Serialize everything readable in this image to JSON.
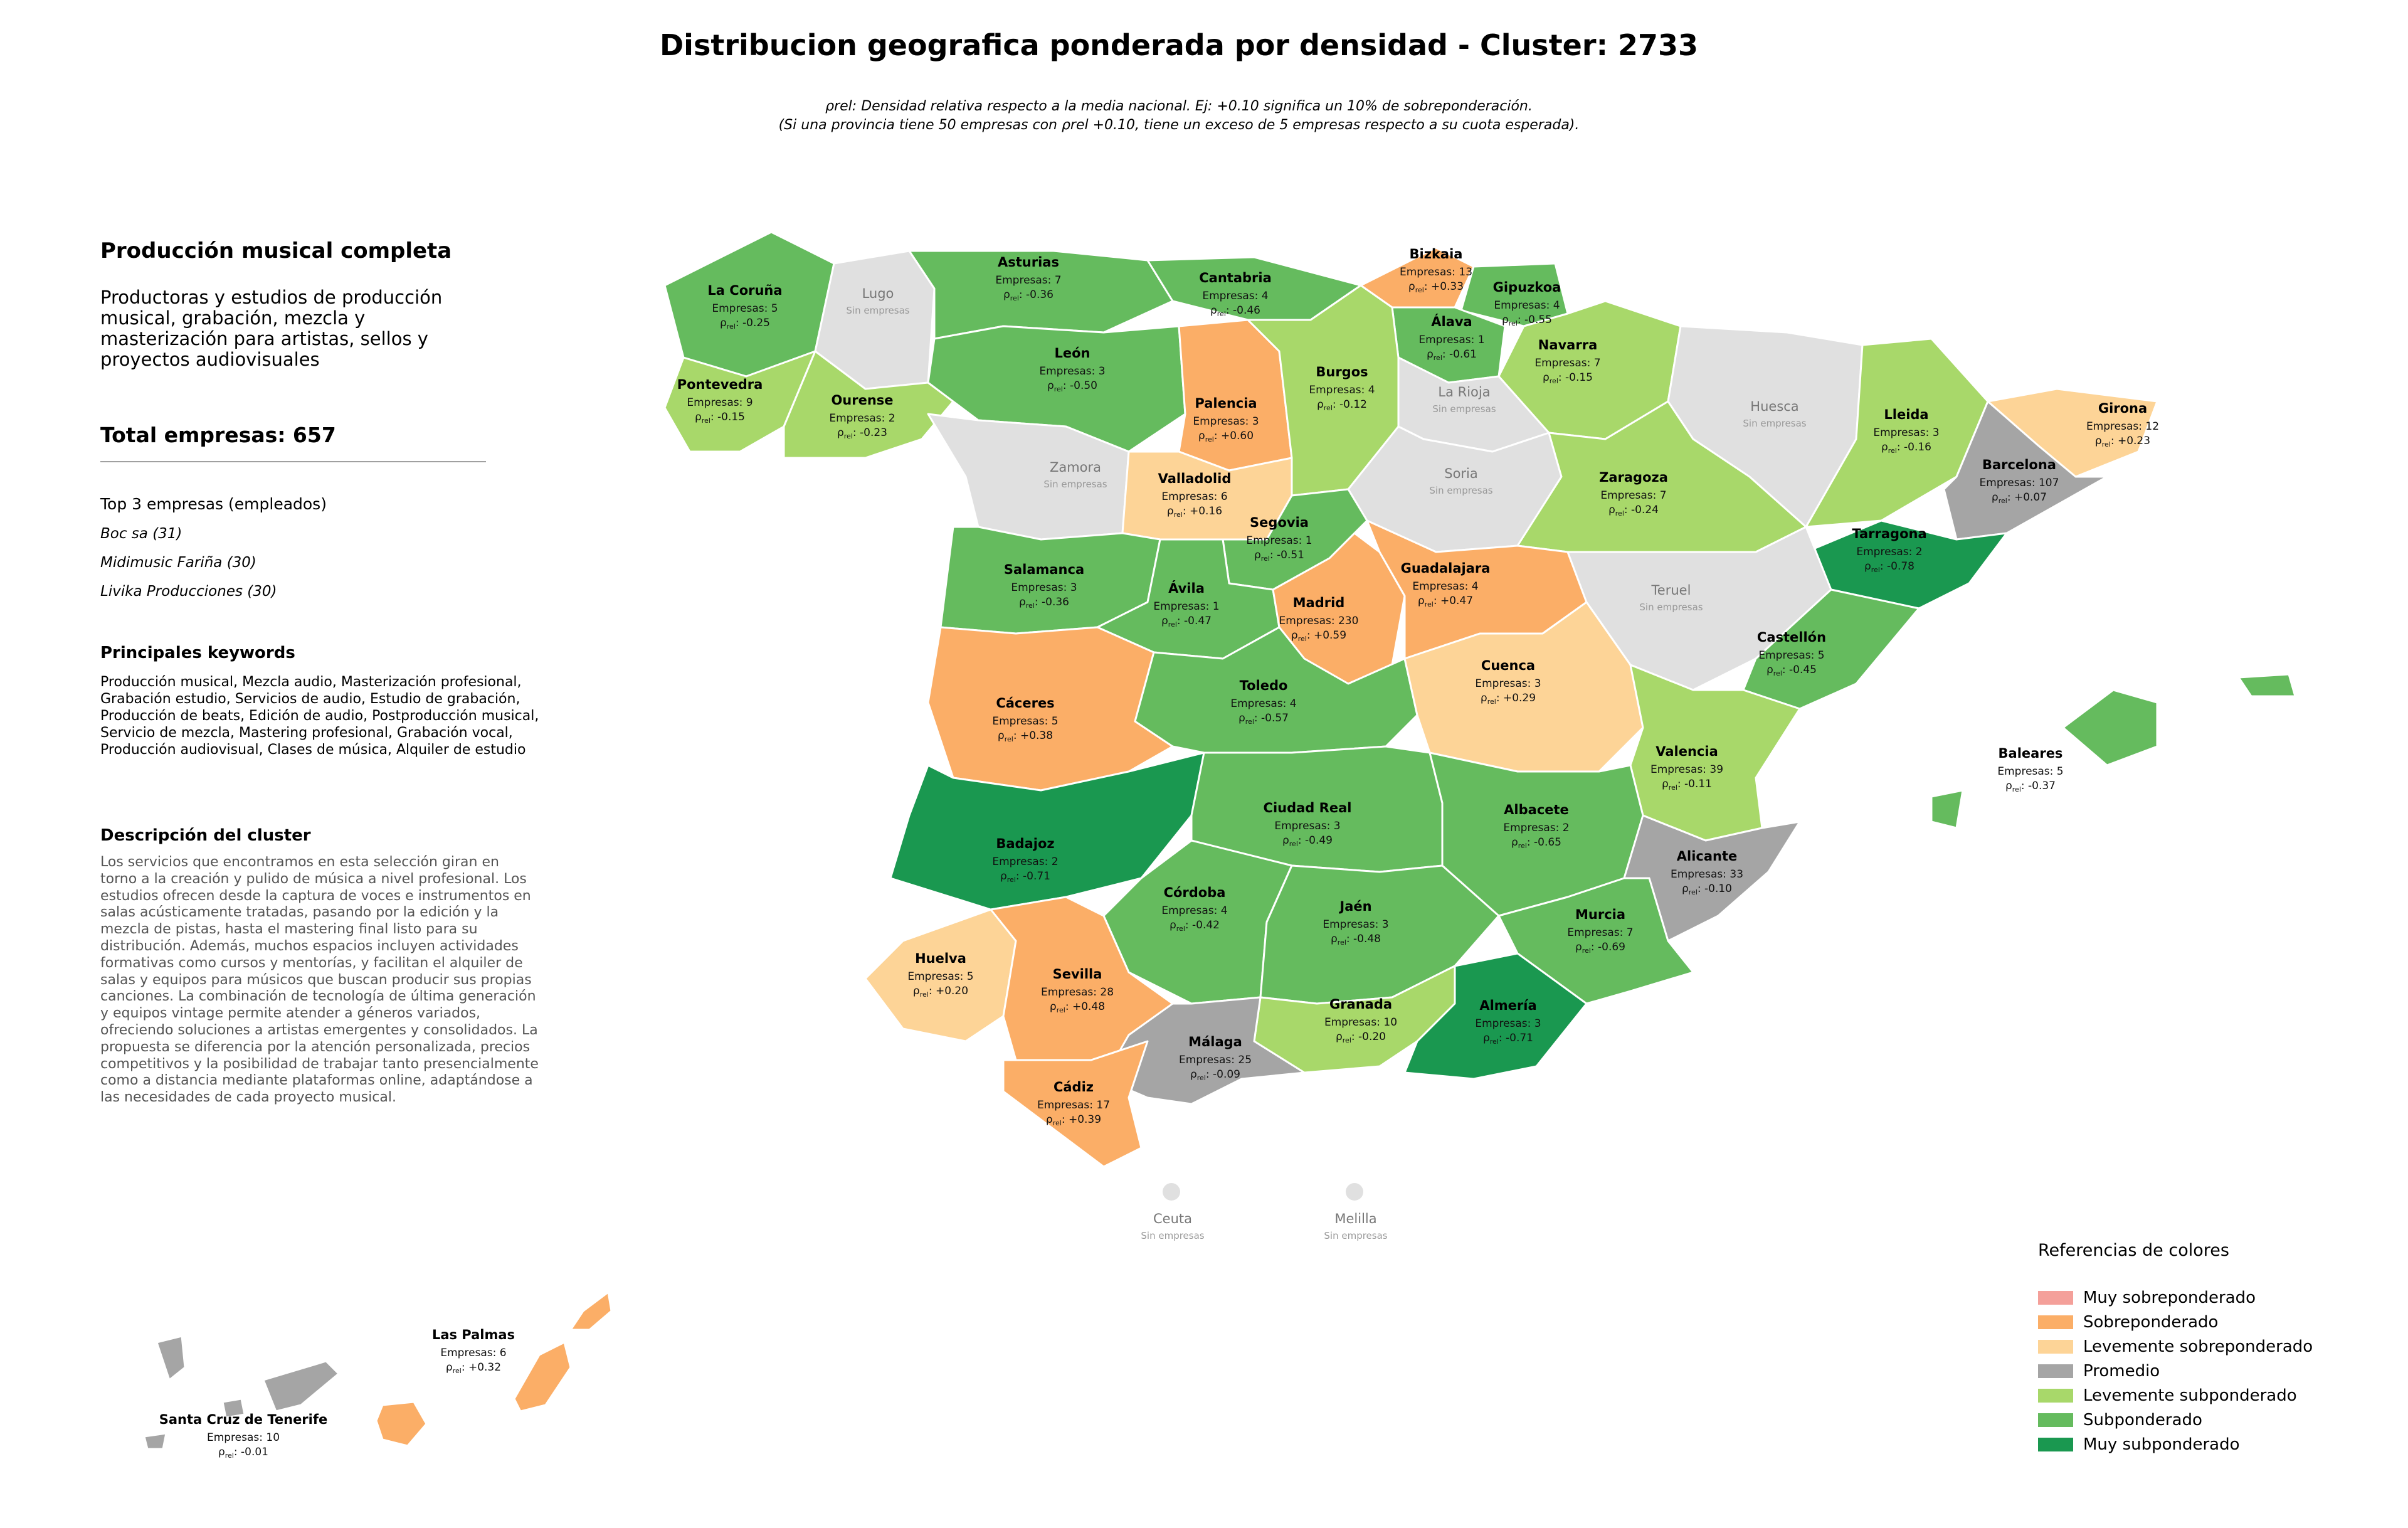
{
  "title": "Distribucion geografica ponderada por densidad - Cluster: 2733",
  "subtitle_line1": "ρrel: Densidad relativa respecto a la media nacional. Ej: +0.10 significa un 10% de sobreponderación.",
  "subtitle_line2": "(Si una provincia tiene 50 empresas con ρrel +0.10, tiene un exceso de 5 empresas respecto a su cuota esperada).",
  "cluster": {
    "title": "Producción musical completa",
    "description": "Productoras y estudios de producción musical, grabación, mezcla y masterización para artistas, sellos y proyectos audiovisuales",
    "total": "Total empresas: 657",
    "top_heading": "Top 3 empresas (empleados)",
    "top_companies": [
      "Boc sa (31)",
      "Midimusic Fariña (30)",
      "Livika Producciones (30)"
    ],
    "keywords_heading": "Principales keywords",
    "keywords": "Producción musical, Mezcla audio, Masterización profesional, Grabación estudio, Servicios de audio, Estudio de grabación, Producción de beats, Edición de audio, Postproducción musical, Servicio de mezcla, Mastering profesional, Grabación vocal, Producción audiovisual, Clases de música, Alquiler de estudio",
    "desc_heading": "Descripción del cluster",
    "desc_text": "Los servicios que encontramos en esta selección giran en torno a la creación y pulido de música a nivel profesional. Los estudios ofrecen desde la captura de voces e instrumentos en salas acústicamente tratadas, pasando por la edición y la mezcla de pistas, hasta el mastering final listo para su distribución. Además, muchos espacios incluyen actividades formativas como cursos y mentorías, y facilitan el alquiler de salas y equipos para músicos que buscan producir sus propias canciones. La combinación de tecnología de última generación y equipos vintage permite atender a géneros variados, ofreciendo soluciones a artistas emergentes y consolidados. La propuesta se diferencia por la atención personalizada, precios competitivos y la posibilidad de trabajar tanto presencialmente como a distancia mediante plataformas online, adaptándose a las necesidades de cada proyecto musical."
  },
  "legend": {
    "title": "Referencias de colores",
    "items": [
      {
        "label": "Muy sobreponderado",
        "color": "#f4a09a"
      },
      {
        "label": "Sobreponderado",
        "color": "#fbae67"
      },
      {
        "label": "Levemente sobreponderado",
        "color": "#fdd497"
      },
      {
        "label": "Promedio",
        "color": "#a5a5a5"
      },
      {
        "label": "Levemente subponderado",
        "color": "#a8d86a"
      },
      {
        "label": "Subponderado",
        "color": "#65bb5e"
      },
      {
        "label": "Muy subponderado",
        "color": "#1a9850"
      }
    ]
  },
  "colors": {
    "muy_sub": "#1a9850",
    "sub": "#65bb5e",
    "lev_sub": "#a8d86a",
    "prom": "#a5a5a5",
    "lev_sob": "#fdd497",
    "sob": "#fbae67",
    "none": "#e0e0e0"
  },
  "labels": {
    "empresas_prefix": "Empresas: ",
    "rho_symbol": "ρ",
    "rho_sub": "rel",
    "sin_empresas": "Sin empresas"
  },
  "provinces": [
    {
      "id": "acoruna",
      "name": "La Coruña",
      "empresas": "5",
      "rho": "-0.25",
      "cls": "sub"
    },
    {
      "id": "lugo",
      "name": "Lugo",
      "empresas": "",
      "rho": "",
      "cls": "none"
    },
    {
      "id": "asturias",
      "name": "Asturias",
      "empresas": "7",
      "rho": "-0.36",
      "cls": "sub"
    },
    {
      "id": "cantabria",
      "name": "Cantabria",
      "empresas": "4",
      "rho": "-0.46",
      "cls": "sub"
    },
    {
      "id": "bizkaia",
      "name": "Bizkaia",
      "empresas": "13",
      "rho": "+0.33",
      "cls": "sob"
    },
    {
      "id": "gipuzkoa",
      "name": "Gipuzkoa",
      "empresas": "4",
      "rho": "-0.55",
      "cls": "sub"
    },
    {
      "id": "alava",
      "name": "Álava",
      "empresas": "1",
      "rho": "-0.61",
      "cls": "sub"
    },
    {
      "id": "navarra",
      "name": "Navarra",
      "empresas": "7",
      "rho": "-0.15",
      "cls": "lev_sub"
    },
    {
      "id": "pontevedra",
      "name": "Pontevedra",
      "empresas": "9",
      "rho": "-0.15",
      "cls": "lev_sub"
    },
    {
      "id": "ourense",
      "name": "Ourense",
      "empresas": "2",
      "rho": "-0.23",
      "cls": "lev_sub"
    },
    {
      "id": "leon",
      "name": "León",
      "empresas": "3",
      "rho": "-0.50",
      "cls": "sub"
    },
    {
      "id": "palencia",
      "name": "Palencia",
      "empresas": "3",
      "rho": "+0.60",
      "cls": "sob"
    },
    {
      "id": "burgos",
      "name": "Burgos",
      "empresas": "4",
      "rho": "-0.12",
      "cls": "lev_sub"
    },
    {
      "id": "larioja",
      "name": "La Rioja",
      "empresas": "",
      "rho": "",
      "cls": "none"
    },
    {
      "id": "huesca",
      "name": "Huesca",
      "empresas": "",
      "rho": "",
      "cls": "none"
    },
    {
      "id": "lleida",
      "name": "Lleida",
      "empresas": "3",
      "rho": "-0.16",
      "cls": "lev_sub"
    },
    {
      "id": "girona",
      "name": "Girona",
      "empresas": "12",
      "rho": "+0.23",
      "cls": "lev_sob"
    },
    {
      "id": "barcelona",
      "name": "Barcelona",
      "empresas": "107",
      "rho": "+0.07",
      "cls": "prom"
    },
    {
      "id": "zamora",
      "name": "Zamora",
      "empresas": "",
      "rho": "",
      "cls": "none"
    },
    {
      "id": "valladolid",
      "name": "Valladolid",
      "empresas": "6",
      "rho": "+0.16",
      "cls": "lev_sob"
    },
    {
      "id": "soria",
      "name": "Soria",
      "empresas": "",
      "rho": "",
      "cls": "none"
    },
    {
      "id": "zaragoza",
      "name": "Zaragoza",
      "empresas": "7",
      "rho": "-0.24",
      "cls": "lev_sub"
    },
    {
      "id": "tarragona",
      "name": "Tarragona",
      "empresas": "2",
      "rho": "-0.78",
      "cls": "muy_sub"
    },
    {
      "id": "segovia",
      "name": "Segovia",
      "empresas": "1",
      "rho": "-0.51",
      "cls": "sub"
    },
    {
      "id": "salamanca",
      "name": "Salamanca",
      "empresas": "3",
      "rho": "-0.36",
      "cls": "sub"
    },
    {
      "id": "avila",
      "name": "Ávila",
      "empresas": "1",
      "rho": "-0.47",
      "cls": "sub"
    },
    {
      "id": "madrid",
      "name": "Madrid",
      "empresas": "230",
      "rho": "+0.59",
      "cls": "sob"
    },
    {
      "id": "guadalajara",
      "name": "Guadalajara",
      "empresas": "4",
      "rho": "+0.47",
      "cls": "sob"
    },
    {
      "id": "teruel",
      "name": "Teruel",
      "empresas": "",
      "rho": "",
      "cls": "none"
    },
    {
      "id": "castellon",
      "name": "Castellón",
      "empresas": "5",
      "rho": "-0.45",
      "cls": "sub"
    },
    {
      "id": "caceres",
      "name": "Cáceres",
      "empresas": "5",
      "rho": "+0.38",
      "cls": "sob"
    },
    {
      "id": "toledo",
      "name": "Toledo",
      "empresas": "4",
      "rho": "-0.57",
      "cls": "sub"
    },
    {
      "id": "cuenca",
      "name": "Cuenca",
      "empresas": "3",
      "rho": "+0.29",
      "cls": "lev_sob"
    },
    {
      "id": "valencia",
      "name": "Valencia",
      "empresas": "39",
      "rho": "-0.11",
      "cls": "lev_sub"
    },
    {
      "id": "baleares",
      "name": "Baleares",
      "empresas": "5",
      "rho": "-0.37",
      "cls": "sub"
    },
    {
      "id": "badajoz",
      "name": "Badajoz",
      "empresas": "2",
      "rho": "-0.71",
      "cls": "muy_sub"
    },
    {
      "id": "ciudadreal",
      "name": "Ciudad Real",
      "empresas": "3",
      "rho": "-0.49",
      "cls": "sub"
    },
    {
      "id": "albacete",
      "name": "Albacete",
      "empresas": "2",
      "rho": "-0.65",
      "cls": "sub"
    },
    {
      "id": "alicante",
      "name": "Alicante",
      "empresas": "33",
      "rho": "-0.10",
      "cls": "prom"
    },
    {
      "id": "cordoba",
      "name": "Córdoba",
      "empresas": "4",
      "rho": "-0.42",
      "cls": "sub"
    },
    {
      "id": "jaen",
      "name": "Jaén",
      "empresas": "3",
      "rho": "-0.48",
      "cls": "sub"
    },
    {
      "id": "murcia",
      "name": "Murcia",
      "empresas": "7",
      "rho": "-0.69",
      "cls": "sub"
    },
    {
      "id": "huelva",
      "name": "Huelva",
      "empresas": "5",
      "rho": "+0.20",
      "cls": "lev_sob"
    },
    {
      "id": "sevilla",
      "name": "Sevilla",
      "empresas": "28",
      "rho": "+0.48",
      "cls": "sob"
    },
    {
      "id": "granada",
      "name": "Granada",
      "empresas": "10",
      "rho": "-0.20",
      "cls": "lev_sub"
    },
    {
      "id": "almeria",
      "name": "Almería",
      "empresas": "3",
      "rho": "-0.71",
      "cls": "muy_sub"
    },
    {
      "id": "malaga",
      "name": "Málaga",
      "empresas": "25",
      "rho": "-0.09",
      "cls": "prom"
    },
    {
      "id": "cadiz",
      "name": "Cádiz",
      "empresas": "17",
      "rho": "+0.39",
      "cls": "sob"
    },
    {
      "id": "ceuta",
      "name": "Ceuta",
      "empresas": "",
      "rho": "",
      "cls": "none"
    },
    {
      "id": "melilla",
      "name": "Melilla",
      "empresas": "",
      "rho": "",
      "cls": "none"
    },
    {
      "id": "laspalmas",
      "name": "Las Palmas",
      "empresas": "6",
      "rho": "+0.32",
      "cls": "sob"
    },
    {
      "id": "tenerife",
      "name": "Santa Cruz de Tenerife",
      "empresas": "10",
      "rho": "-0.01",
      "cls": "prom"
    }
  ]
}
